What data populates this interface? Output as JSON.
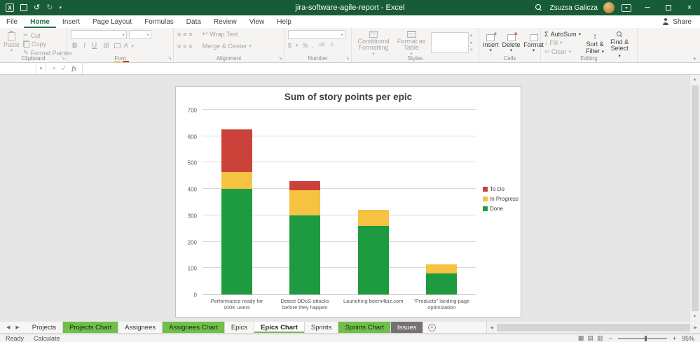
{
  "titlebar": {
    "title": "jira-software-agile-report - Excel",
    "user_name": "Zsuzsa Galicza"
  },
  "icons": {
    "app_letter": "X",
    "undo": "↺",
    "redo": "↻",
    "caret": "▾",
    "collapse": "▴",
    "minimize": "─",
    "close": "×",
    "cancel": "×",
    "enter": "✓",
    "sum": "Σ",
    "fill_arrow": "↓",
    "clear": "▱",
    "sort": "↕",
    "bold": "B",
    "italic": "I",
    "underline": "U",
    "borders": "⊞",
    "font_color_letter": "A",
    "align": "≡",
    "wrap": "↩",
    "currency": "$",
    "percent": "%",
    "comma": ",",
    "inc_dec": ".00",
    "dec_dec": ".0",
    "gallery_up": "▴",
    "gallery_down": "▾",
    "gallery_more": "≡",
    "plus": "+",
    "times": "×",
    "minus": "−",
    "view_normal": "▦",
    "view_layout": "▤",
    "view_break": "▥",
    "nav_left": "◀",
    "nav_right": "▶",
    "scroll_up": "▲",
    "scroll_down": "▼",
    "new_sheet": "+"
  },
  "ribbon_tabs": {
    "items": [
      {
        "label": "File"
      },
      {
        "label": "Home",
        "active": true
      },
      {
        "label": "Insert"
      },
      {
        "label": "Page Layout"
      },
      {
        "label": "Formulas"
      },
      {
        "label": "Data"
      },
      {
        "label": "Review"
      },
      {
        "label": "View"
      },
      {
        "label": "Help"
      }
    ],
    "share_label": "Share"
  },
  "ribbon": {
    "clipboard": {
      "label": "Clipboard",
      "paste_label": "Paste",
      "cut_label": "Cut",
      "copy_label": "Copy",
      "format_painter_label": "Format Painter"
    },
    "font": {
      "label": "Font"
    },
    "alignment": {
      "label": "Alignment",
      "wrap_label": "Wrap Text",
      "merge_label": "Merge & Center"
    },
    "number": {
      "label": "Number"
    },
    "styles": {
      "label": "Styles",
      "conditional_label": "Conditional Formatting",
      "table_label": "Format as Table"
    },
    "cells": {
      "label": "Cells",
      "insert_label": "Insert",
      "delete_label": "Delete",
      "format_label": "Format"
    },
    "editing": {
      "label": "Editing",
      "autosum_label": "AutoSum",
      "fill_label": "Fill",
      "clear_label": "Clear",
      "sort_label_1": "Sort &",
      "sort_label_2": "Filter",
      "find_label_1": "Find &",
      "find_label_2": "Select"
    }
  },
  "formula_bar": {
    "name_box_value": "",
    "fx_label": "fx"
  },
  "chart_data": {
    "type": "bar",
    "stacked": true,
    "title": "Sum of story points per epic",
    "categories": [
      "Performance ready for 100K users",
      "Detect DDoS attacks before they happen",
      "Launching beem4biz.com",
      "\"Products\" landing page optimization"
    ],
    "series": [
      {
        "name": "Done",
        "color": "#1e9b41",
        "values": [
          400,
          300,
          260,
          80
        ]
      },
      {
        "name": "In Progress",
        "color": "#f5c242",
        "values": [
          65,
          95,
          60,
          35
        ]
      },
      {
        "name": "To Do",
        "color": "#cb423b",
        "values": [
          160,
          35,
          0,
          0
        ]
      }
    ],
    "legend": [
      "To Do",
      "In Progress",
      "Done"
    ],
    "legend_position": "right",
    "ylim": [
      0,
      700
    ],
    "ytick_step": 100,
    "grid": true,
    "xlabel": "",
    "ylabel": ""
  },
  "sheet_tabs": {
    "items": [
      {
        "label": "Projects",
        "style": "plain"
      },
      {
        "label": "Projects Chart",
        "style": "green"
      },
      {
        "label": "Assignees",
        "style": "plain"
      },
      {
        "label": "Assignees Chart",
        "style": "green"
      },
      {
        "label": "Epics",
        "style": "plain"
      },
      {
        "label": "Epics Chart",
        "style": "active"
      },
      {
        "label": "Sprints",
        "style": "plain"
      },
      {
        "label": "Sprints Chart",
        "style": "green"
      },
      {
        "label": "Issues",
        "style": "dark"
      }
    ]
  },
  "status_bar": {
    "ready": "Ready",
    "calculate": "Calculate",
    "zoom_level": "95%"
  }
}
